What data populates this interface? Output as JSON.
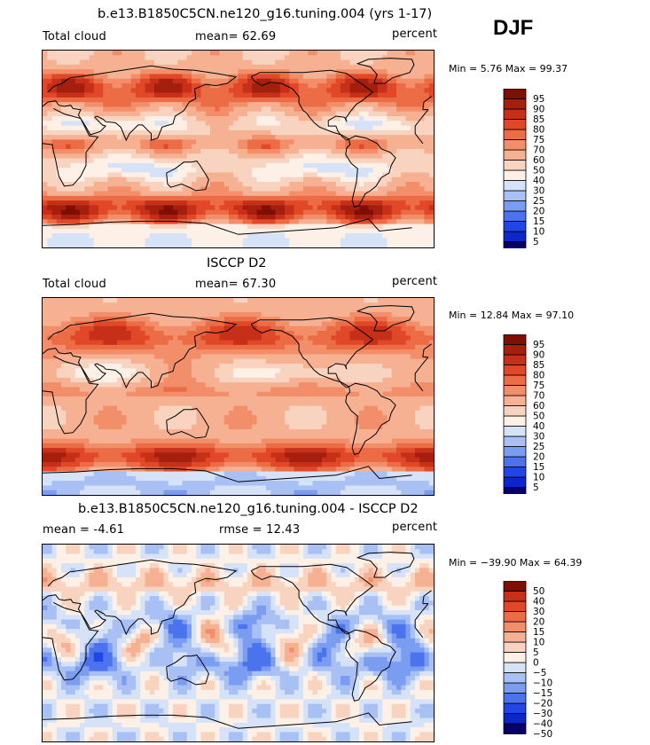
{
  "season": "DJF",
  "colors": {
    "abs_scale": [
      "#08006a",
      "#0b26c9",
      "#2046e8",
      "#4c73ee",
      "#7a9df1",
      "#a8c0f4",
      "#d5e2f8",
      "#fdf1e7",
      "#f8d3bf",
      "#f6b193",
      "#f28f6a",
      "#eb6c45",
      "#e04828",
      "#c62f18",
      "#a41f0e",
      "#7f0e05"
    ],
    "diff_scale": [
      "#08006a",
      "#0b26c9",
      "#2046e8",
      "#4c73ee",
      "#7a9df1",
      "#a8c0f4",
      "#d5e2f8",
      "#fdf1e7",
      "#f8d3bf",
      "#f6b193",
      "#f28f6a",
      "#eb6c45",
      "#e04828",
      "#c62f18",
      "#7f0e05"
    ]
  },
  "chart_data": [
    {
      "type": "heatmap",
      "title": "b.e13.B1850C5CN.ne120_g16.tuning.004 (yrs 1-17)",
      "variable": "Total cloud",
      "stat_text": "mean=  62.69",
      "units": "percent",
      "minmax_text": "Min =   5.76 Max =  99.37",
      "min": 5.76,
      "max": 99.37,
      "mean": 62.69,
      "colorbar_levels": [
        "95",
        "90",
        "85",
        "80",
        "75",
        "70",
        "60",
        "50",
        "40",
        "30",
        "25",
        "20",
        "15",
        "10",
        "5"
      ]
    },
    {
      "type": "heatmap",
      "title": "ISCCP D2",
      "variable": "Total cloud",
      "stat_text": "mean=  67.30",
      "units": "percent",
      "minmax_text": "Min =  12.84 Max =  97.10",
      "min": 12.84,
      "max": 97.1,
      "mean": 67.3,
      "colorbar_levels": [
        "95",
        "90",
        "85",
        "80",
        "75",
        "70",
        "60",
        "50",
        "40",
        "30",
        "25",
        "20",
        "15",
        "10",
        "5"
      ]
    },
    {
      "type": "heatmap",
      "title": "b.e13.B1850C5CN.ne120_g16.tuning.004 - ISCCP D2",
      "variable": "",
      "stat_text": "mean =   -4.61",
      "stat_text2": "rmse =   12.43",
      "units": "percent",
      "minmax_text": "Min = −39.90 Max =  64.39",
      "min": -39.9,
      "max": 64.39,
      "mean": -4.61,
      "rmse": 12.43,
      "colorbar_levels": [
        "50",
        "40",
        "30",
        "20",
        "15",
        "10",
        "5",
        "0",
        "−5",
        "−10",
        "−15",
        "−20",
        "−30",
        "−40",
        "−50"
      ]
    }
  ]
}
